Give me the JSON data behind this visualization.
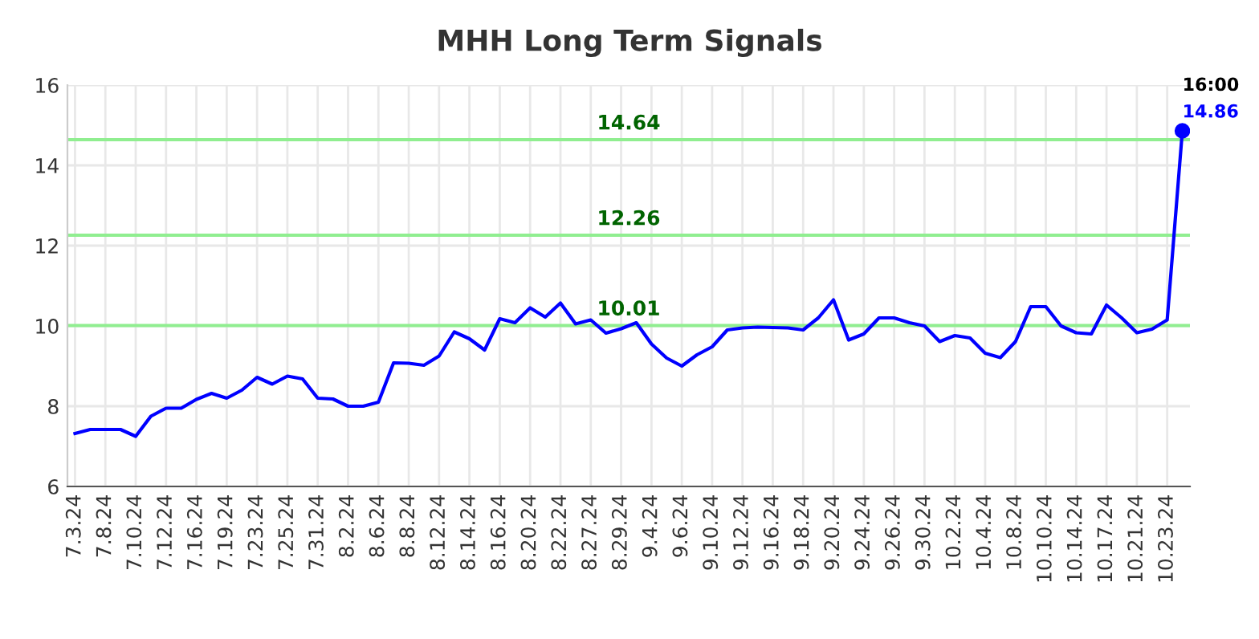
{
  "chart_data": {
    "type": "line",
    "title": "MHH Long Term Signals",
    "categories": [
      "7.3.24",
      null,
      "7.8.24",
      null,
      "7.10.24",
      null,
      "7.12.24",
      null,
      "7.16.24",
      null,
      "7.19.24",
      null,
      "7.23.24",
      null,
      "7.25.24",
      null,
      "7.31.24",
      null,
      "8.2.24",
      null,
      "8.6.24",
      null,
      "8.8.24",
      null,
      "8.12.24",
      null,
      "8.14.24",
      null,
      "8.16.24",
      null,
      "8.20.24",
      null,
      "8.22.24",
      null,
      "8.27.24",
      null,
      "8.29.24",
      null,
      "9.4.24",
      null,
      "9.6.24",
      null,
      "9.10.24",
      null,
      "9.12.24",
      null,
      "9.16.24",
      null,
      "9.18.24",
      null,
      "9.20.24",
      null,
      "9.24.24",
      null,
      "9.26.24",
      null,
      "9.30.24",
      null,
      "10.2.24",
      null,
      "10.4.24",
      null,
      "10.8.24",
      null,
      "10.10.24",
      null,
      "10.14.24",
      null,
      "10.17.24",
      null,
      "10.21.24",
      null,
      "10.23.24",
      null
    ],
    "series": [
      {
        "color": "#0000ff",
        "values": [
          7.32,
          7.42,
          7.42,
          7.42,
          7.25,
          7.75,
          7.95,
          7.95,
          8.17,
          8.32,
          8.2,
          8.4,
          8.72,
          8.55,
          8.75,
          8.68,
          8.2,
          8.18,
          8.0,
          8.0,
          8.1,
          9.08,
          9.07,
          9.02,
          9.25,
          9.85,
          9.68,
          9.4,
          10.18,
          10.08,
          10.45,
          10.22,
          10.57,
          10.05,
          10.15,
          9.82,
          9.93,
          10.08,
          9.55,
          9.2,
          9.0,
          9.28,
          9.48,
          9.9,
          9.95,
          9.97,
          9.96,
          9.95,
          9.9,
          10.2,
          10.65,
          9.65,
          9.8,
          10.2,
          10.2,
          10.08,
          10.0,
          9.61,
          9.76,
          9.7,
          9.32,
          9.21,
          9.61,
          10.48,
          10.48,
          10.0,
          9.83,
          9.8,
          10.52,
          10.2,
          9.83,
          9.92,
          10.15,
          14.86
        ],
        "value_labels": [
          null,
          null,
          null,
          null,
          null,
          null,
          null,
          null,
          null,
          null,
          null,
          null,
          null,
          null,
          null,
          null,
          null,
          null,
          null,
          null,
          null,
          null,
          null,
          null,
          null,
          null,
          null,
          null,
          null,
          null,
          null,
          null,
          null,
          null,
          null,
          null,
          null,
          null,
          null,
          null,
          null,
          null,
          null,
          null,
          null,
          null,
          null,
          null,
          null,
          null,
          null,
          null,
          null,
          null,
          null,
          null,
          null,
          null,
          null,
          null,
          null,
          null,
          null,
          null,
          null,
          null,
          null,
          null,
          null,
          null,
          null,
          null,
          null,
          "14.86"
        ]
      }
    ],
    "ylim": [
      6,
      16
    ],
    "yticks": [
      6,
      8,
      10,
      12,
      14,
      16
    ],
    "grid": true,
    "ref_lines": [
      {
        "axis": "y",
        "value": 14.64,
        "label": "14.64",
        "color": "#90ee90"
      },
      {
        "axis": "y",
        "value": 12.26,
        "label": "12.26",
        "color": "#90ee90"
      },
      {
        "axis": "y",
        "value": 10.01,
        "label": "10.01",
        "color": "#90ee90"
      }
    ],
    "annotations": [
      "16:00"
    ]
  }
}
